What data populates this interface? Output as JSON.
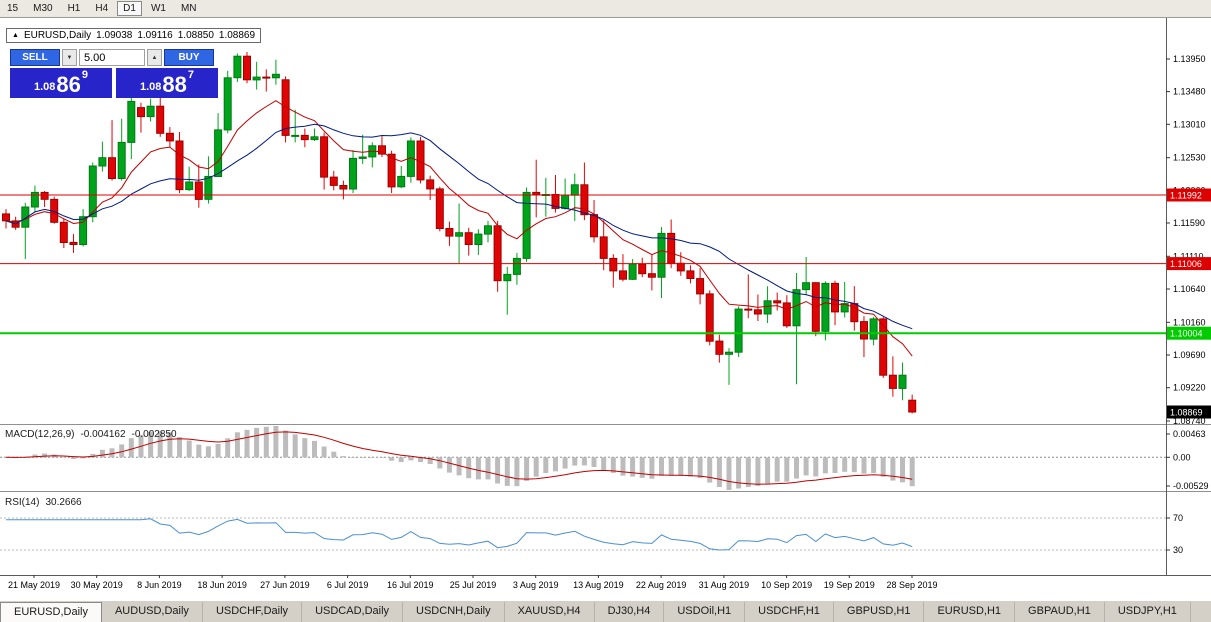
{
  "toolbar": {
    "timeframes": [
      {
        "label": "15",
        "active": false
      },
      {
        "label": "M30",
        "active": false
      },
      {
        "label": "H1",
        "active": false
      },
      {
        "label": "H4",
        "active": false
      },
      {
        "label": "D1",
        "active": true
      },
      {
        "label": "W1",
        "active": false
      },
      {
        "label": "MN",
        "active": false
      }
    ]
  },
  "icons": {
    "one_click_arrow": "▲",
    "volume_down": "▼",
    "volume_up": "▲"
  },
  "symbol_box": {
    "symbol": "EURUSD,Daily",
    "open": "1.09038",
    "high": "1.09116",
    "low": "1.08850",
    "close": "1.08869"
  },
  "trade_panel": {
    "sell_label": "SELL",
    "buy_label": "BUY",
    "volume": "5.00",
    "sell_price": {
      "prefix": "1.08",
      "big": "86",
      "sup": "9"
    },
    "buy_price": {
      "prefix": "1.08",
      "big": "88",
      "sup": "7"
    }
  },
  "indicators": {
    "macd": {
      "label": "MACD(12,26,9)",
      "value_main": "-0.004162",
      "value_signal": "-0.002850"
    },
    "rsi": {
      "label": "RSI(14)",
      "value": "30.2666"
    }
  },
  "colors": {
    "candle_up": "#00A41C",
    "candle_up_border": "#007A12",
    "candle_down": "#E00505",
    "candle_down_border": "#9C0000",
    "ma_fast": "#C00000",
    "ma_slow": "#001A80",
    "hline_red": "#DD0000",
    "hline_green": "#00CC00",
    "macd_hist": "#BCBCBC",
    "macd_signal": "#C00000",
    "rsi_line": "#4A8FCE",
    "tag_current": "#000000",
    "btn_blue": "#2F66E3",
    "price_blue": "#2724C9"
  },
  "chart_data": {
    "type": "candlestick",
    "title": "EURUSD,Daily",
    "ylim": [
      1.08697,
      1.14396
    ],
    "price_ticks": [
      "1.13950",
      "1.13480",
      "1.13010",
      "1.12530",
      "1.12060",
      "1.11590",
      "1.11110",
      "1.10640",
      "1.10160",
      "1.09690",
      "1.09220",
      "1.08740"
    ],
    "x_labels": [
      "21 May 2019",
      "30 May 2019",
      "8 Jun 2019",
      "18 Jun 2019",
      "27 Jun 2019",
      "6 Jul 2019",
      "16 Jul 2019",
      "25 Jul 2019",
      "3 Aug 2019",
      "13 Aug 2019",
      "22 Aug 2019",
      "31 Aug 2019",
      "10 Sep 2019",
      "19 Sep 2019",
      "28 Sep 2019"
    ],
    "hlines": [
      {
        "value": 1.11992,
        "label": "1.11992",
        "color": "#DD0000",
        "width": 1
      },
      {
        "value": 1.11006,
        "label": "1.11006",
        "color": "#DD0000",
        "width": 1
      },
      {
        "value": 1.10004,
        "label": "1.10004",
        "color": "#00CC00",
        "width": 2
      }
    ],
    "current_price": {
      "value": 1.08869,
      "label": "1.08869"
    },
    "moving_averages": [
      {
        "name": "fast",
        "type": "ema",
        "period": 10
      },
      {
        "name": "slow",
        "type": "sma",
        "period": 21
      }
    ],
    "macd": {
      "params": [
        12,
        26,
        9
      ],
      "axis_ticks": [
        {
          "label": "0.00463",
          "pos": "top"
        },
        {
          "label": "0.00",
          "pos": "zero"
        },
        {
          "label": "-0.00529",
          "pos": "bottom"
        }
      ],
      "last_main": -0.004162,
      "last_signal": -0.00285
    },
    "rsi": {
      "period": 14,
      "last": 30.2666,
      "levels": [
        70,
        30
      ]
    },
    "candles": [
      [
        1.1172,
        1.1179,
        1.1151,
        1.1162
      ],
      [
        1.1162,
        1.1168,
        1.1149,
        1.1153
      ],
      [
        1.1153,
        1.1188,
        1.1107,
        1.1182
      ],
      [
        1.1182,
        1.1213,
        1.1175,
        1.1203
      ],
      [
        1.1203,
        1.1205,
        1.1182,
        1.1193
      ],
      [
        1.1193,
        1.1197,
        1.1158,
        1.116
      ],
      [
        1.116,
        1.1165,
        1.1123,
        1.1131
      ],
      [
        1.1131,
        1.1143,
        1.1116,
        1.1128
      ],
      [
        1.1128,
        1.1179,
        1.1125,
        1.1168
      ],
      [
        1.1168,
        1.1246,
        1.116,
        1.1241
      ],
      [
        1.1241,
        1.1276,
        1.1233,
        1.1253
      ],
      [
        1.1253,
        1.1307,
        1.122,
        1.1223
      ],
      [
        1.1223,
        1.1309,
        1.122,
        1.1275
      ],
      [
        1.1275,
        1.1348,
        1.1251,
        1.1334
      ],
      [
        1.1325,
        1.1332,
        1.1289,
        1.1312
      ],
      [
        1.1312,
        1.1338,
        1.1305,
        1.1327
      ],
      [
        1.1327,
        1.1344,
        1.1283,
        1.1288
      ],
      [
        1.1288,
        1.1297,
        1.1268,
        1.1277
      ],
      [
        1.1277,
        1.129,
        1.1202,
        1.1207
      ],
      [
        1.1207,
        1.124,
        1.1205,
        1.1218
      ],
      [
        1.1218,
        1.1243,
        1.1181,
        1.1193
      ],
      [
        1.1193,
        1.1255,
        1.1187,
        1.1226
      ],
      [
        1.1226,
        1.1317,
        1.1226,
        1.1293
      ],
      [
        1.1293,
        1.1378,
        1.1288,
        1.1368
      ],
      [
        1.1368,
        1.1403,
        1.1362,
        1.1399
      ],
      [
        1.1399,
        1.1405,
        1.136,
        1.1365
      ],
      [
        1.1365,
        1.1391,
        1.1351,
        1.1369
      ],
      [
        1.1369,
        1.138,
        1.1348,
        1.1368
      ],
      [
        1.1368,
        1.1394,
        1.1358,
        1.1373
      ],
      [
        1.1365,
        1.137,
        1.1275,
        1.1285
      ],
      [
        1.1285,
        1.1322,
        1.1275,
        1.1285
      ],
      [
        1.1285,
        1.1295,
        1.1268,
        1.1279
      ],
      [
        1.1279,
        1.1295,
        1.1277,
        1.1283
      ],
      [
        1.1283,
        1.1289,
        1.1207,
        1.1225
      ],
      [
        1.1225,
        1.1234,
        1.1206,
        1.1213
      ],
      [
        1.1213,
        1.122,
        1.1193,
        1.1208
      ],
      [
        1.1208,
        1.1264,
        1.1202,
        1.1252
      ],
      [
        1.1252,
        1.1286,
        1.1244,
        1.1254
      ],
      [
        1.1254,
        1.1275,
        1.1239,
        1.127
      ],
      [
        1.127,
        1.1284,
        1.1254,
        1.1258
      ],
      [
        1.1258,
        1.1263,
        1.1202,
        1.1211
      ],
      [
        1.1211,
        1.1241,
        1.1209,
        1.1226
      ],
      [
        1.1226,
        1.1282,
        1.1217,
        1.1277
      ],
      [
        1.1277,
        1.1283,
        1.1216,
        1.1221
      ],
      [
        1.1221,
        1.1227,
        1.1192,
        1.1208
      ],
      [
        1.1208,
        1.1211,
        1.1147,
        1.1151
      ],
      [
        1.1151,
        1.1161,
        1.1126,
        1.114
      ],
      [
        1.114,
        1.1187,
        1.1101,
        1.1145
      ],
      [
        1.1145,
        1.1152,
        1.1112,
        1.1128
      ],
      [
        1.1128,
        1.115,
        1.1113,
        1.1143
      ],
      [
        1.1143,
        1.1162,
        1.1131,
        1.1155
      ],
      [
        1.1155,
        1.1162,
        1.106,
        1.1076
      ],
      [
        1.1076,
        1.1096,
        1.1027,
        1.1085
      ],
      [
        1.1085,
        1.1116,
        1.107,
        1.1108
      ],
      [
        1.1108,
        1.121,
        1.1103,
        1.1203
      ],
      [
        1.1203,
        1.125,
        1.1167,
        1.12
      ],
      [
        1.12,
        1.1224,
        1.1168,
        1.12
      ],
      [
        1.12,
        1.1228,
        1.1174,
        1.118
      ],
      [
        1.118,
        1.1223,
        1.1178,
        1.1199
      ],
      [
        1.1199,
        1.123,
        1.1162,
        1.1214
      ],
      [
        1.1214,
        1.1246,
        1.1163,
        1.1171
      ],
      [
        1.1171,
        1.1192,
        1.1131,
        1.1139
      ],
      [
        1.1139,
        1.1163,
        1.1091,
        1.1108
      ],
      [
        1.1108,
        1.1114,
        1.1066,
        1.109
      ],
      [
        1.109,
        1.1114,
        1.1075,
        1.1078
      ],
      [
        1.1078,
        1.1107,
        1.1077,
        1.11
      ],
      [
        1.11,
        1.1109,
        1.1081,
        1.1086
      ],
      [
        1.1086,
        1.1113,
        1.1062,
        1.1081
      ],
      [
        1.1081,
        1.1153,
        1.1051,
        1.1144
      ],
      [
        1.1144,
        1.1164,
        1.1094,
        1.1101
      ],
      [
        1.1101,
        1.1117,
        1.1083,
        1.109
      ],
      [
        1.109,
        1.1098,
        1.1072,
        1.1079
      ],
      [
        1.1079,
        1.1094,
        1.1042,
        1.1057
      ],
      [
        1.1057,
        1.1062,
        1.0983,
        1.0989
      ],
      [
        1.0989,
        1.0998,
        1.0958,
        1.097
      ],
      [
        1.097,
        1.0979,
        1.0926,
        1.0973
      ],
      [
        1.0973,
        1.1039,
        1.0966,
        1.1035
      ],
      [
        1.1035,
        1.1085,
        1.1022,
        1.1034
      ],
      [
        1.1034,
        1.1056,
        1.1018,
        1.1028
      ],
      [
        1.1028,
        1.1068,
        1.1015,
        1.1047
      ],
      [
        1.1047,
        1.1059,
        1.1033,
        1.1044
      ],
      [
        1.1044,
        1.1055,
        1.1008,
        1.1011
      ],
      [
        1.1011,
        1.1087,
        1.0927,
        1.1063
      ],
      [
        1.1063,
        1.111,
        1.1055,
        1.1073
      ],
      [
        1.1073,
        1.1074,
        1.0996,
        1.1003
      ],
      [
        1.1003,
        1.1075,
        1.099,
        1.1072
      ],
      [
        1.1072,
        1.1076,
        1.1012,
        1.1031
      ],
      [
        1.1031,
        1.1074,
        1.1023,
        1.1043
      ],
      [
        1.1043,
        1.1068,
        1.1004,
        1.1017
      ],
      [
        1.1017,
        1.1025,
        1.0966,
        1.0992
      ],
      [
        1.0992,
        1.1024,
        1.0983,
        1.1021
      ],
      [
        1.1021,
        1.1024,
        1.0936,
        1.094
      ],
      [
        1.094,
        1.0967,
        1.0909,
        1.0921
      ],
      [
        1.0921,
        1.0958,
        1.0904,
        1.094
      ],
      [
        1.0904,
        1.0912,
        1.0885,
        1.0887
      ]
    ]
  },
  "tabs": [
    {
      "label": "EURUSD,Daily",
      "active": true
    },
    {
      "label": "AUDUSD,Daily",
      "active": false
    },
    {
      "label": "USDCHF,Daily",
      "active": false
    },
    {
      "label": "USDCAD,Daily",
      "active": false
    },
    {
      "label": "USDCNH,Daily",
      "active": false
    },
    {
      "label": "XAUUSD,H4",
      "active": false
    },
    {
      "label": "DJ30,H4",
      "active": false
    },
    {
      "label": "USDOil,H1",
      "active": false
    },
    {
      "label": "USDCHF,H1",
      "active": false
    },
    {
      "label": "GBPUSD,H1",
      "active": false
    },
    {
      "label": "EURUSD,H1",
      "active": false
    },
    {
      "label": "GBPAUD,H1",
      "active": false
    },
    {
      "label": "USDJPY,H1",
      "active": false
    }
  ]
}
